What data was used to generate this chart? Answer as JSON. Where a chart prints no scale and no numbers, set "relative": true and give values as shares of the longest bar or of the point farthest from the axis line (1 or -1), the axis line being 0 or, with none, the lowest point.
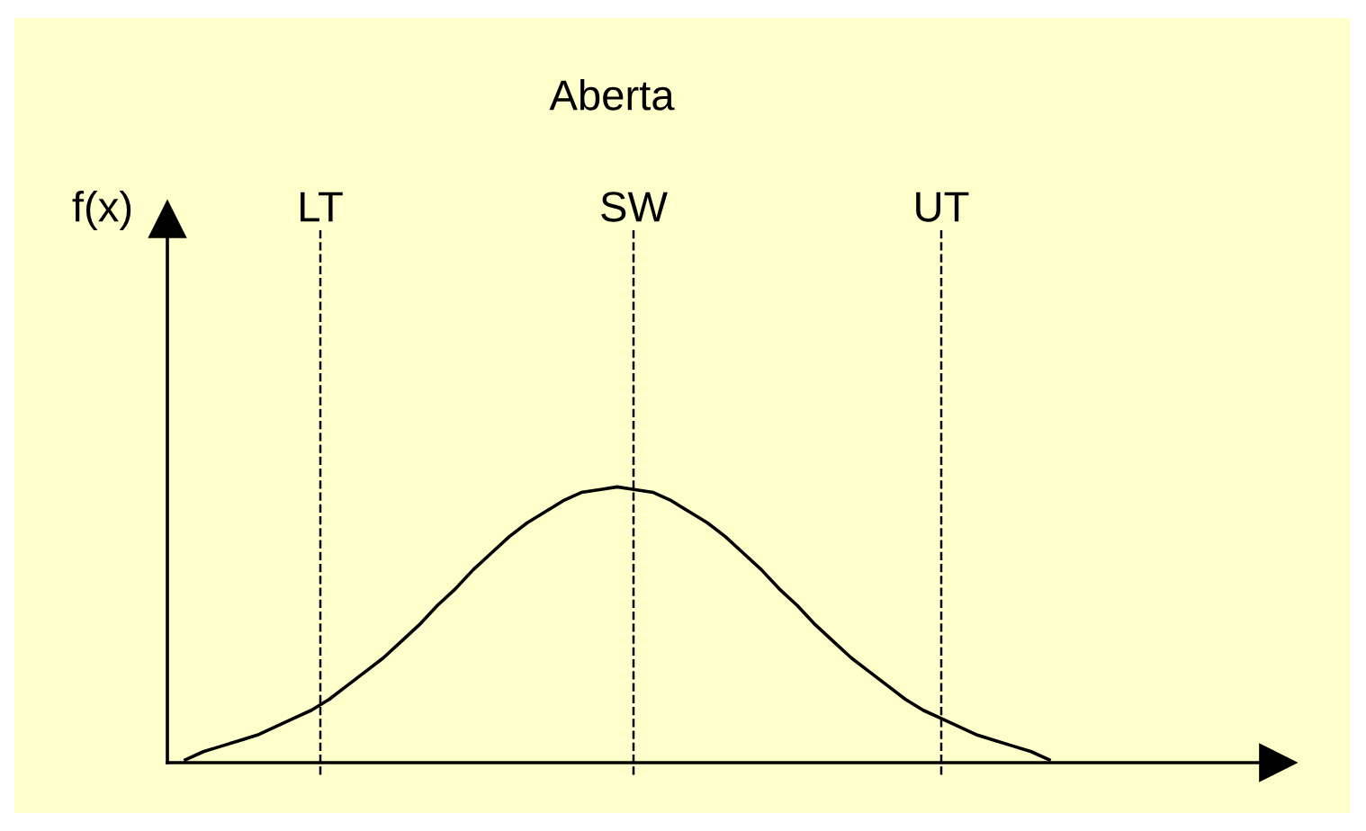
{
  "chart_data": {
    "type": "line",
    "title": "Aberta",
    "annotations": [
      "f(x)",
      "LT",
      "SW",
      "UT"
    ],
    "relative": true,
    "color": "#000000",
    "categories": [
      null,
      null,
      null,
      null,
      null,
      null,
      null,
      null,
      null,
      null,
      null,
      null,
      null,
      null,
      null,
      null,
      null,
      null,
      null,
      null,
      null,
      null,
      null,
      null,
      null,
      null,
      null,
      null,
      null,
      null,
      null,
      null,
      null,
      null,
      null,
      null,
      null,
      null,
      null,
      null,
      null,
      null,
      null,
      null,
      null,
      null,
      null,
      null,
      null
    ],
    "values": [
      0.01,
      0.04,
      0.06,
      0.08,
      0.1,
      0.13,
      0.16,
      0.19,
      0.23,
      0.28,
      0.33,
      0.38,
      0.44,
      0.5,
      0.57,
      0.63,
      0.7,
      0.76,
      0.82,
      0.87,
      0.91,
      0.95,
      0.98,
      0.99,
      1,
      0.99,
      0.98,
      0.95,
      0.91,
      0.87,
      0.82,
      0.76,
      0.7,
      0.63,
      0.57,
      0.5,
      0.44,
      0.38,
      0.33,
      0.28,
      0.23,
      0.19,
      0.16,
      0.13,
      0.1,
      0.08,
      0.06,
      0.04,
      0.01
    ],
    "marker": "none",
    "line_style": "solid"
  }
}
